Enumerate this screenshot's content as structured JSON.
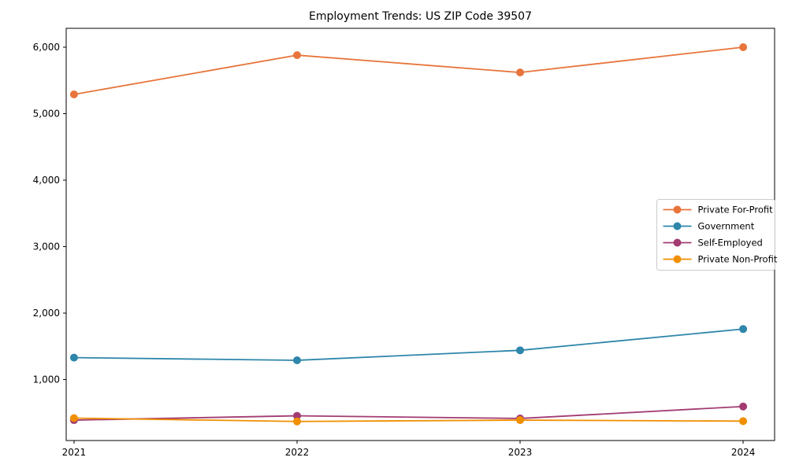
{
  "chart_data": {
    "type": "line",
    "title": "Employment Trends: US ZIP Code 39507",
    "x": [
      2021,
      2022,
      2023,
      2024
    ],
    "x_tick_labels": [
      "2021",
      "2022",
      "2023",
      "2024"
    ],
    "xlabel": "",
    "ylabel": "",
    "xlim": [
      2020.965,
      2024.141
    ],
    "ylim": [
      83,
      6284
    ],
    "yticks": [
      1000,
      2000,
      3000,
      4000,
      5000,
      6000
    ],
    "ytick_labels": [
      "1,000",
      "2,000",
      "3,000",
      "4,000",
      "5,000",
      "6,000"
    ],
    "grid": false,
    "legend_position": "center-right",
    "marker": "circle",
    "series": [
      {
        "name": "Private For-Profit",
        "color": "#E8743B",
        "values": [
          5290,
          5880,
          5620,
          6000
        ]
      },
      {
        "name": "Government",
        "color": "#2E86AB",
        "values": [
          1330,
          1290,
          1440,
          1760
        ]
      },
      {
        "name": "Self-Employed",
        "color": "#A23B72",
        "values": [
          390,
          455,
          415,
          595
        ]
      },
      {
        "name": "Private Non-Profit",
        "color": "#F18F01",
        "values": [
          420,
          370,
          390,
          375
        ]
      }
    ],
    "frame_color": "#000000",
    "background_color": "#ffffff",
    "legend_border_color": "#cccccc"
  }
}
